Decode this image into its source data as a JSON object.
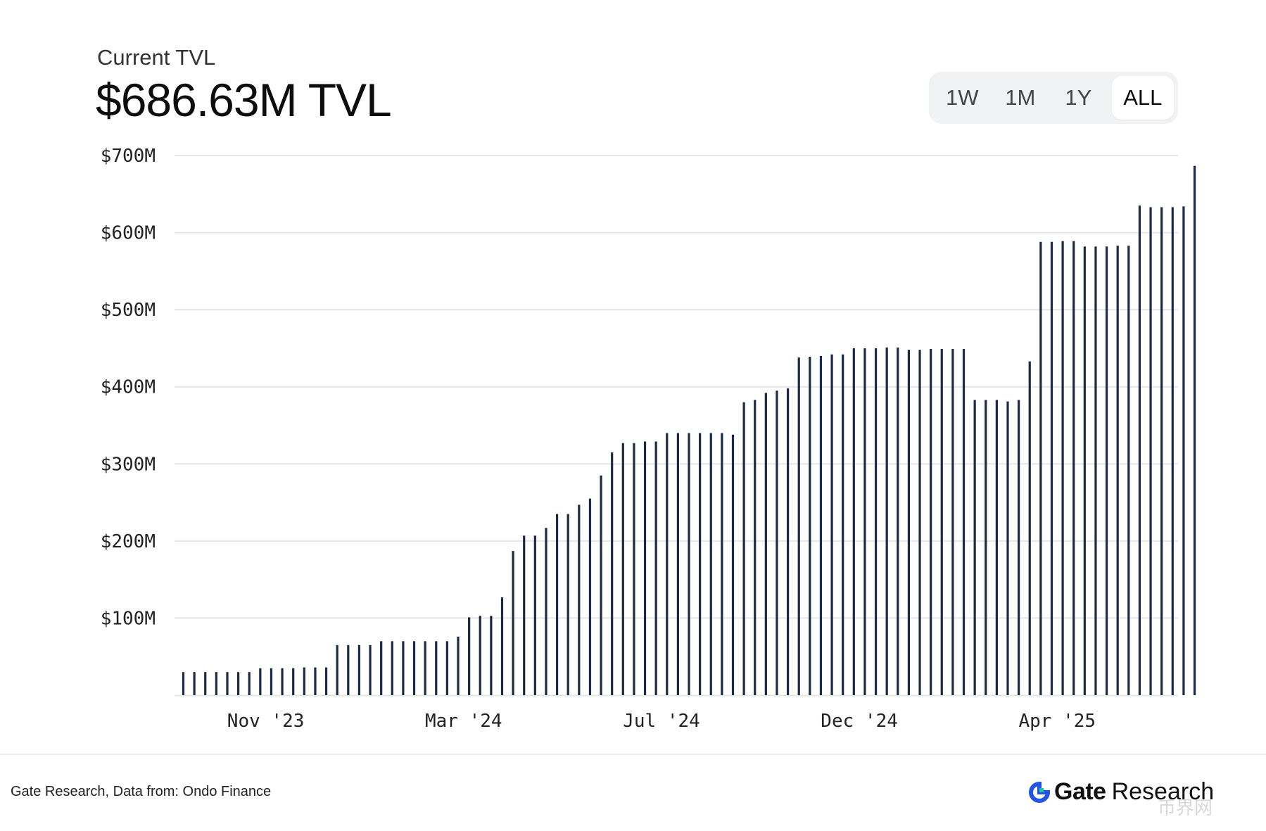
{
  "header": {
    "subtitle": "Current TVL",
    "value": "$686.63M TVL"
  },
  "range_selector": {
    "options": [
      "1W",
      "1M",
      "1Y",
      "ALL"
    ],
    "active": "ALL"
  },
  "footer": {
    "source": "Gate Research, Data from: Ondo Finance",
    "brand_name": "Gate",
    "brand_suffix": "Research",
    "watermark": "币界网"
  },
  "colors": {
    "bar": "#1b2b45",
    "grid": "#e6e6e6",
    "brand_blue": "#2354e6",
    "brand_teal": "#17c7a7"
  },
  "icons": [
    "gate-logo-icon"
  ],
  "chart_data": {
    "type": "bar",
    "title": "",
    "xlabel": "",
    "ylabel": "",
    "ylim": [
      0,
      700
    ],
    "y_unit": "$M",
    "y_ticks": [
      "$100M",
      "$200M",
      "$300M",
      "$400M",
      "$500M",
      "$600M",
      "$700M"
    ],
    "y_tick_values": [
      100,
      200,
      300,
      400,
      500,
      600,
      700
    ],
    "x_ticks": [
      {
        "label": "Nov '23",
        "after_bar": 7.5
      },
      {
        "label": "Mar '24",
        "after_bar": 25.5
      },
      {
        "label": "Jul '24",
        "after_bar": 43.5
      },
      {
        "label": "Dec '24",
        "after_bar": 61.5
      },
      {
        "label": "Apr '25",
        "after_bar": 79.5
      }
    ],
    "grid": true,
    "series": [
      {
        "values": [
          30,
          30,
          30,
          30,
          30,
          30,
          30,
          35,
          35,
          35,
          35,
          36,
          36,
          36,
          65,
          65,
          65,
          65,
          70,
          70,
          70,
          70,
          70,
          70,
          70,
          76,
          101,
          103,
          103,
          127,
          187,
          207,
          207,
          217,
          235,
          235,
          247,
          255,
          285,
          315,
          327,
          327,
          329,
          329,
          340,
          340,
          340,
          340,
          340,
          340,
          338,
          380,
          383,
          392,
          395,
          398,
          438,
          439,
          440,
          442,
          442,
          450,
          450,
          450,
          451,
          451,
          448,
          448,
          449,
          449,
          449,
          449,
          383,
          383,
          383,
          381,
          383,
          433,
          588,
          588,
          589,
          589,
          582,
          582,
          582,
          583,
          583,
          635,
          633,
          633,
          633,
          634,
          686.63
        ]
      }
    ]
  }
}
